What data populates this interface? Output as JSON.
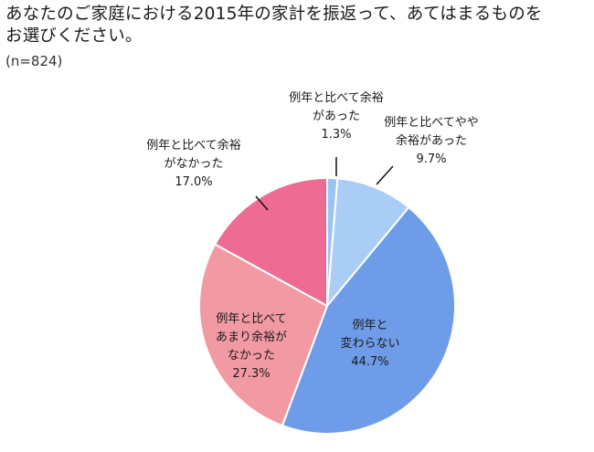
{
  "title_line1": "あなたのご家庭における2015年の家計を振返って、あてはまるものを",
  "title_line2": "お選びください。",
  "sample_size": "(n=824)",
  "chart_data": {
    "type": "pie",
    "slices": [
      {
        "label_lines": [
          "例年と比べて余裕",
          "があった"
        ],
        "value": 1.3,
        "value_label": "1.3%",
        "color": "#9cc3f2"
      },
      {
        "label_lines": [
          "例年と比べてやや",
          "余裕があった"
        ],
        "value": 9.7,
        "value_label": "9.7%",
        "color": "#a9cdf5"
      },
      {
        "label_lines": [
          "例年と",
          "変わらない"
        ],
        "value": 44.7,
        "value_label": "44.7%",
        "color": "#6f9ce8"
      },
      {
        "label_lines": [
          "例年と比べて",
          "あまり余裕が",
          "なかった"
        ],
        "value": 27.3,
        "value_label": "27.3%",
        "color": "#f29aa4"
      },
      {
        "label_lines": [
          "例年と比べて余裕",
          "がなかった"
        ],
        "value": 17.0,
        "value_label": "17.0%",
        "color": "#ee6b93"
      }
    ]
  }
}
